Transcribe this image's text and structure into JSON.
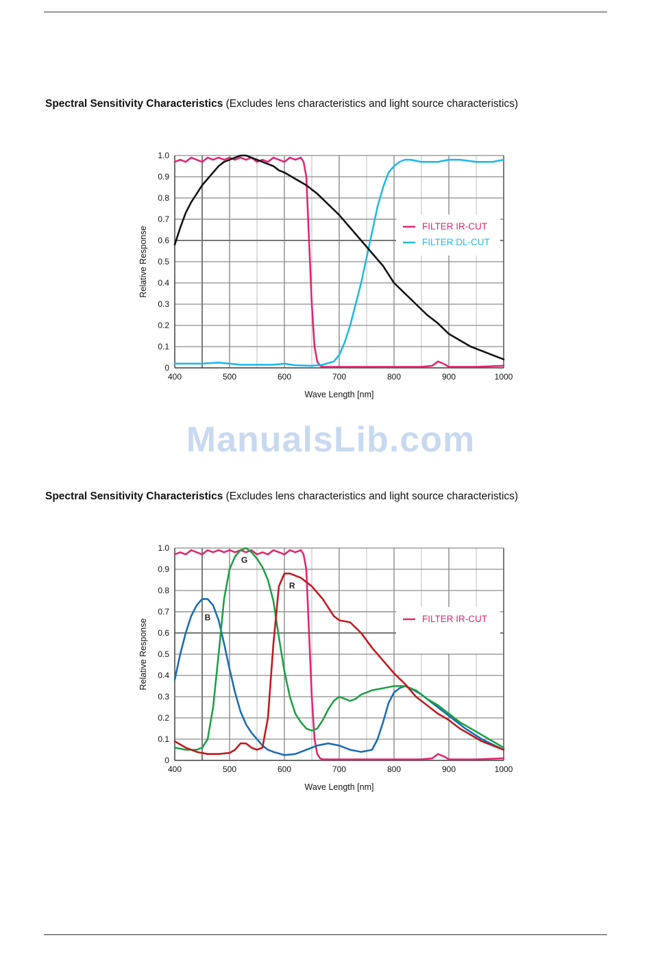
{
  "page": {
    "watermark": "ManualsLib.com",
    "headings": [
      {
        "bold": "Spectral Sensitivity Characteristics",
        "normal": " (Excludes lens characteristics and light source characteristics)"
      },
      {
        "bold": "Spectral Sensitivity Characteristics",
        "normal": " (Excludes lens characteristics and light source characteristics)"
      }
    ]
  },
  "colors": {
    "grid_major": "#8a8a8a",
    "grid_minor": "#bdbdbd",
    "ir_cut": "#e0266e",
    "dl_cut": "#21b9e6",
    "mono": "#111111",
    "red": "#c0191e",
    "green": "#1ea048",
    "blue": "#1c6cb2"
  },
  "chart_data": [
    {
      "type": "line",
      "xlabel": "Wave Length [nm]",
      "ylabel": "Relative Response",
      "xlim": [
        400,
        1000
      ],
      "ylim": [
        0,
        1.0
      ],
      "x_ticks": [
        "400",
        "500",
        "600",
        "700",
        "800",
        "900",
        "1000"
      ],
      "y_ticks": [
        "0",
        "0.1",
        "0.2",
        "0.3",
        "0.4",
        "0.5",
        "0.6",
        "0.7",
        "0.8",
        "0.9",
        "1.0"
      ],
      "grid": true,
      "legend_placement": "right",
      "series": [
        {
          "name": "FILTER IR-CUT",
          "color_key": "ir_cut",
          "x": [
            400,
            410,
            420,
            430,
            440,
            450,
            460,
            470,
            480,
            490,
            500,
            510,
            520,
            530,
            540,
            550,
            560,
            570,
            580,
            590,
            600,
            610,
            620,
            630,
            635,
            640,
            645,
            650,
            655,
            660,
            665,
            670,
            680,
            690,
            700,
            750,
            800,
            850,
            870,
            880,
            890,
            900,
            950,
            1000
          ],
          "y": [
            0.97,
            0.98,
            0.97,
            0.99,
            0.98,
            0.97,
            0.99,
            0.98,
            0.99,
            0.98,
            0.99,
            0.98,
            0.99,
            0.98,
            0.99,
            0.97,
            0.98,
            0.97,
            0.99,
            0.98,
            0.97,
            0.99,
            0.98,
            0.99,
            0.97,
            0.9,
            0.6,
            0.3,
            0.1,
            0.03,
            0.01,
            0.005,
            0.005,
            0.005,
            0.005,
            0.005,
            0.005,
            0.005,
            0.01,
            0.03,
            0.02,
            0.005,
            0.005,
            0.01
          ]
        },
        {
          "name": "FILTER DL-CUT",
          "color_key": "dl_cut",
          "x": [
            400,
            450,
            480,
            500,
            520,
            550,
            580,
            600,
            620,
            650,
            670,
            690,
            700,
            710,
            720,
            730,
            740,
            750,
            760,
            770,
            780,
            790,
            800,
            810,
            820,
            830,
            850,
            880,
            900,
            920,
            950,
            980,
            1000
          ],
          "y": [
            0.02,
            0.02,
            0.025,
            0.02,
            0.015,
            0.015,
            0.015,
            0.02,
            0.012,
            0.01,
            0.015,
            0.03,
            0.06,
            0.12,
            0.2,
            0.3,
            0.4,
            0.52,
            0.64,
            0.76,
            0.85,
            0.92,
            0.95,
            0.97,
            0.98,
            0.98,
            0.97,
            0.97,
            0.98,
            0.98,
            0.97,
            0.97,
            0.98
          ]
        },
        {
          "name": "",
          "color_key": "mono",
          "x": [
            400,
            410,
            420,
            430,
            440,
            450,
            460,
            470,
            480,
            490,
            500,
            510,
            520,
            530,
            540,
            550,
            560,
            570,
            580,
            590,
            600,
            620,
            640,
            660,
            680,
            700,
            720,
            740,
            760,
            780,
            800,
            820,
            840,
            860,
            880,
            900,
            920,
            940,
            960,
            980,
            1000
          ],
          "y": [
            0.58,
            0.66,
            0.73,
            0.78,
            0.82,
            0.86,
            0.89,
            0.92,
            0.95,
            0.97,
            0.98,
            0.99,
            1.0,
            1.0,
            0.99,
            0.98,
            0.97,
            0.96,
            0.95,
            0.93,
            0.92,
            0.89,
            0.86,
            0.82,
            0.77,
            0.72,
            0.66,
            0.6,
            0.54,
            0.48,
            0.4,
            0.35,
            0.3,
            0.25,
            0.21,
            0.16,
            0.13,
            0.1,
            0.08,
            0.06,
            0.04
          ]
        }
      ]
    },
    {
      "type": "line",
      "xlabel": "Wave Length [nm]",
      "ylabel": "Relative Response",
      "xlim": [
        400,
        1000
      ],
      "ylim": [
        0,
        1.0
      ],
      "x_ticks": [
        "400",
        "500",
        "600",
        "700",
        "800",
        "900",
        "1000"
      ],
      "y_ticks": [
        "0",
        "0.1",
        "0.2",
        "0.3",
        "0.4",
        "0.5",
        "0.6",
        "0.7",
        "0.8",
        "0.9",
        "1.0"
      ],
      "grid": true,
      "legend_placement": "right",
      "annotations": [
        {
          "text": "B",
          "x": 460,
          "y": 0.66
        },
        {
          "text": "G",
          "x": 527,
          "y": 0.93
        },
        {
          "text": "R",
          "x": 614,
          "y": 0.81
        }
      ],
      "series": [
        {
          "name": "FILTER IR-CUT",
          "color_key": "ir_cut",
          "x": [
            400,
            410,
            420,
            430,
            440,
            450,
            460,
            470,
            480,
            490,
            500,
            510,
            520,
            530,
            540,
            550,
            560,
            570,
            580,
            590,
            600,
            610,
            620,
            630,
            635,
            640,
            645,
            650,
            655,
            660,
            665,
            670,
            680,
            690,
            700,
            750,
            800,
            850,
            870,
            880,
            890,
            900,
            950,
            1000
          ],
          "y": [
            0.97,
            0.98,
            0.97,
            0.99,
            0.98,
            0.97,
            0.99,
            0.98,
            0.99,
            0.98,
            0.99,
            0.98,
            0.99,
            0.98,
            0.99,
            0.97,
            0.98,
            0.97,
            0.99,
            0.98,
            0.97,
            0.99,
            0.98,
            0.99,
            0.97,
            0.9,
            0.6,
            0.3,
            0.1,
            0.03,
            0.01,
            0.005,
            0.005,
            0.005,
            0.005,
            0.005,
            0.005,
            0.005,
            0.01,
            0.03,
            0.02,
            0.005,
            0.005,
            0.01
          ]
        },
        {
          "name": "",
          "color_key": "blue",
          "x": [
            400,
            410,
            420,
            430,
            440,
            450,
            460,
            470,
            480,
            490,
            500,
            510,
            520,
            530,
            540,
            550,
            560,
            570,
            580,
            600,
            620,
            640,
            660,
            680,
            700,
            720,
            740,
            760,
            770,
            780,
            790,
            800,
            810,
            820,
            830,
            850,
            870,
            900,
            930,
            960,
            1000
          ],
          "y": [
            0.38,
            0.5,
            0.6,
            0.68,
            0.73,
            0.76,
            0.76,
            0.73,
            0.66,
            0.55,
            0.43,
            0.32,
            0.23,
            0.17,
            0.13,
            0.1,
            0.07,
            0.05,
            0.04,
            0.025,
            0.03,
            0.05,
            0.07,
            0.08,
            0.07,
            0.05,
            0.04,
            0.05,
            0.1,
            0.18,
            0.27,
            0.32,
            0.34,
            0.35,
            0.34,
            0.31,
            0.27,
            0.21,
            0.15,
            0.1,
            0.05
          ]
        },
        {
          "name": "",
          "color_key": "green",
          "x": [
            400,
            420,
            440,
            450,
            460,
            470,
            480,
            490,
            500,
            510,
            520,
            530,
            540,
            550,
            560,
            570,
            580,
            590,
            600,
            610,
            620,
            630,
            640,
            650,
            660,
            670,
            680,
            690,
            700,
            710,
            720,
            730,
            740,
            760,
            780,
            800,
            820,
            840,
            860,
            880,
            900,
            920,
            940,
            960,
            980,
            1000
          ],
          "y": [
            0.06,
            0.05,
            0.05,
            0.06,
            0.1,
            0.25,
            0.5,
            0.76,
            0.9,
            0.96,
            0.99,
            1.0,
            0.98,
            0.95,
            0.91,
            0.85,
            0.75,
            0.58,
            0.42,
            0.3,
            0.22,
            0.18,
            0.15,
            0.14,
            0.15,
            0.19,
            0.24,
            0.28,
            0.3,
            0.29,
            0.28,
            0.29,
            0.31,
            0.33,
            0.34,
            0.35,
            0.35,
            0.33,
            0.29,
            0.26,
            0.22,
            0.18,
            0.15,
            0.12,
            0.09,
            0.06
          ]
        },
        {
          "name": "",
          "color_key": "red",
          "x": [
            400,
            420,
            440,
            460,
            480,
            500,
            510,
            520,
            530,
            540,
            550,
            560,
            570,
            580,
            590,
            600,
            610,
            620,
            630,
            640,
            650,
            660,
            670,
            680,
            690,
            700,
            720,
            740,
            760,
            780,
            800,
            820,
            840,
            860,
            880,
            900,
            920,
            940,
            960,
            980,
            1000
          ],
          "y": [
            0.09,
            0.06,
            0.04,
            0.03,
            0.03,
            0.035,
            0.05,
            0.08,
            0.08,
            0.06,
            0.05,
            0.06,
            0.2,
            0.55,
            0.82,
            0.88,
            0.88,
            0.87,
            0.86,
            0.84,
            0.82,
            0.79,
            0.76,
            0.72,
            0.68,
            0.66,
            0.65,
            0.6,
            0.53,
            0.47,
            0.41,
            0.36,
            0.3,
            0.26,
            0.22,
            0.19,
            0.15,
            0.12,
            0.09,
            0.07,
            0.05
          ]
        }
      ]
    }
  ]
}
